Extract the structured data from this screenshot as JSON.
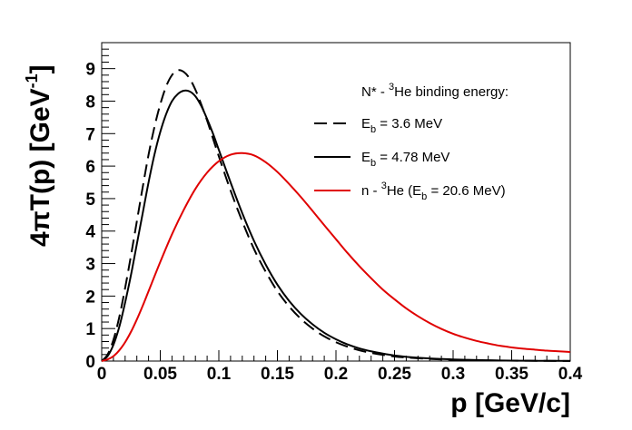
{
  "chart_data": {
    "type": "line",
    "title": "",
    "xlabel": "p [GeV/c]",
    "ylabel": "4πT(p) [GeV^-1]",
    "ylabel_parts": {
      "prefix": "4πT(p) [GeV",
      "sup": "-1",
      "suffix": "]"
    },
    "xlabel_display": "p [GeV/c]",
    "xlim": [
      0,
      0.4
    ],
    "ylim": [
      0,
      9.8
    ],
    "xticks": [
      0,
      0.05,
      0.1,
      0.15,
      0.2,
      0.25,
      0.3,
      0.35,
      0.4
    ],
    "xtick_labels": [
      "0",
      "0.05",
      "0.1",
      "0.15",
      "0.2",
      "0.25",
      "0.3",
      "0.35",
      "0.4"
    ],
    "yticks": [
      0,
      1,
      2,
      3,
      4,
      5,
      6,
      7,
      8,
      9
    ],
    "ytick_labels": [
      "0",
      "1",
      "2",
      "3",
      "4",
      "5",
      "6",
      "7",
      "8",
      "9"
    ],
    "grid": false,
    "legend": {
      "title_parts": {
        "prefix": "N* - ",
        "sup": "3",
        "suffix": "He binding energy:"
      },
      "entries": [
        {
          "prefix": "E",
          "sub": "b",
          "suffix": " = 3.6 MeV",
          "style": "dashed",
          "color": "#000000"
        },
        {
          "prefix": "E",
          "sub": "b",
          "suffix": " = 4.78 MeV",
          "style": "solid",
          "color": "#000000"
        },
        {
          "prefix": "n - ",
          "sup": "3",
          "mid": "He (E",
          "sub": "b",
          "suffix": " = 20.6 MeV)",
          "style": "solid",
          "color": "#e00000"
        }
      ],
      "placement": "top-right"
    },
    "series": [
      {
        "name": "E_b = 3.6 MeV",
        "style": "dashed",
        "color": "#000000",
        "x": [
          0,
          0.005,
          0.01,
          0.015,
          0.02,
          0.025,
          0.03,
          0.035,
          0.04,
          0.045,
          0.05,
          0.055,
          0.06,
          0.065,
          0.07,
          0.075,
          0.08,
          0.085,
          0.09,
          0.095,
          0.1,
          0.11,
          0.12,
          0.13,
          0.14,
          0.15,
          0.16,
          0.17,
          0.18,
          0.19,
          0.2,
          0.21,
          0.22,
          0.23,
          0.24,
          0.25,
          0.26,
          0.28,
          0.3,
          0.32,
          0.34,
          0.36,
          0.38,
          0.4
        ],
        "y": [
          0,
          0.2,
          0.65,
          1.35,
          2.25,
          3.25,
          4.3,
          5.35,
          6.35,
          7.2,
          7.9,
          8.45,
          8.8,
          8.95,
          8.9,
          8.7,
          8.35,
          7.9,
          7.4,
          6.85,
          6.3,
          5.25,
          4.3,
          3.45,
          2.75,
          2.15,
          1.68,
          1.3,
          1.0,
          0.76,
          0.58,
          0.44,
          0.33,
          0.25,
          0.19,
          0.14,
          0.11,
          0.065,
          0.04,
          0.025,
          0.015,
          0.01,
          0.006,
          0.004
        ]
      },
      {
        "name": "E_b = 4.78 MeV",
        "style": "solid",
        "color": "#000000",
        "x": [
          0,
          0.005,
          0.01,
          0.015,
          0.02,
          0.025,
          0.03,
          0.035,
          0.04,
          0.045,
          0.05,
          0.055,
          0.06,
          0.065,
          0.07,
          0.075,
          0.08,
          0.085,
          0.09,
          0.095,
          0.1,
          0.11,
          0.12,
          0.13,
          0.14,
          0.15,
          0.16,
          0.17,
          0.18,
          0.19,
          0.2,
          0.21,
          0.22,
          0.23,
          0.24,
          0.25,
          0.26,
          0.28,
          0.3,
          0.32,
          0.34,
          0.36,
          0.38,
          0.4
        ],
        "y": [
          0,
          0.15,
          0.5,
          1.05,
          1.8,
          2.65,
          3.6,
          4.55,
          5.5,
          6.35,
          7.05,
          7.6,
          8.0,
          8.22,
          8.32,
          8.3,
          8.15,
          7.85,
          7.45,
          7.0,
          6.5,
          5.5,
          4.55,
          3.7,
          2.97,
          2.35,
          1.85,
          1.45,
          1.13,
          0.87,
          0.67,
          0.51,
          0.39,
          0.3,
          0.23,
          0.17,
          0.13,
          0.08,
          0.05,
          0.03,
          0.018,
          0.011,
          0.007,
          0.004
        ]
      },
      {
        "name": "n - 3He (E_b = 20.6 MeV)",
        "style": "solid",
        "color": "#e00000",
        "x": [
          0,
          0.005,
          0.01,
          0.015,
          0.02,
          0.025,
          0.03,
          0.035,
          0.04,
          0.05,
          0.06,
          0.07,
          0.08,
          0.09,
          0.1,
          0.11,
          0.12,
          0.13,
          0.14,
          0.15,
          0.16,
          0.17,
          0.18,
          0.19,
          0.2,
          0.21,
          0.22,
          0.23,
          0.24,
          0.25,
          0.26,
          0.27,
          0.28,
          0.29,
          0.3,
          0.31,
          0.32,
          0.33,
          0.34,
          0.35,
          0.36,
          0.37,
          0.38,
          0.39,
          0.4
        ],
        "y": [
          0,
          0.05,
          0.15,
          0.33,
          0.58,
          0.9,
          1.28,
          1.7,
          2.15,
          3.05,
          3.9,
          4.65,
          5.3,
          5.8,
          6.15,
          6.35,
          6.4,
          6.33,
          6.12,
          5.82,
          5.45,
          5.05,
          4.62,
          4.18,
          3.75,
          3.32,
          2.92,
          2.55,
          2.2,
          1.9,
          1.62,
          1.38,
          1.17,
          0.99,
          0.84,
          0.72,
          0.62,
          0.54,
          0.47,
          0.42,
          0.38,
          0.35,
          0.32,
          0.3,
          0.28
        ]
      }
    ]
  }
}
